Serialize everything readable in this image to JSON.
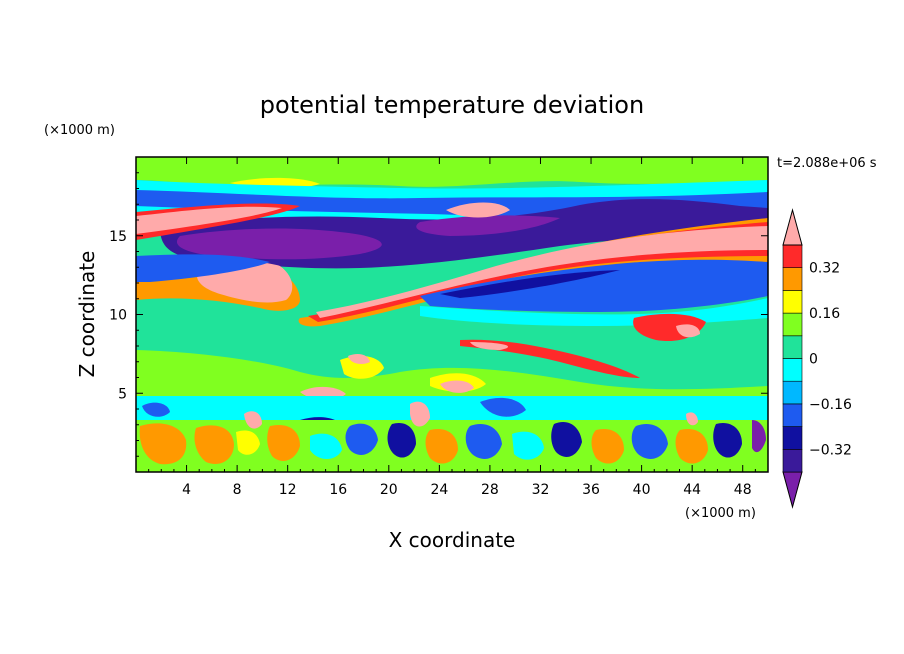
{
  "chart_data": {
    "type": "heatmap",
    "title": "potential temperature deviation",
    "xlabel": "X coordinate",
    "ylabel": "Z coordinate",
    "x_unit": "(×1000 m)",
    "y_unit": "(×1000 m)",
    "time_label": "t=2.088e+06 s",
    "xlim": [
      0,
      50
    ],
    "ylim": [
      0,
      20
    ],
    "x_ticks": [
      4,
      8,
      12,
      16,
      20,
      24,
      28,
      32,
      36,
      40,
      44,
      48
    ],
    "y_ticks": [
      5,
      10,
      15
    ],
    "colorbar": {
      "levels": [
        -0.4,
        -0.32,
        -0.24,
        -0.16,
        -0.08,
        0,
        0.08,
        0.16,
        0.24,
        0.32,
        0.4
      ],
      "tick_labels": [
        {
          "value": 0.32,
          "label": "0.32"
        },
        {
          "value": 0.16,
          "label": "0.16"
        },
        {
          "value": 0,
          "label": "0"
        },
        {
          "value": -0.16,
          "label": "−0.16"
        },
        {
          "value": -0.32,
          "label": "−0.32"
        }
      ],
      "colors": [
        "#7a1faa",
        "#3a1a9a",
        "#1010a0",
        "#1e5bf0",
        "#00b8ff",
        "#00ffff",
        "#20e39a",
        "#80ff20",
        "#ffff00",
        "#ff9900",
        "#ff2a2a",
        "#ffaaaa"
      ]
    }
  }
}
